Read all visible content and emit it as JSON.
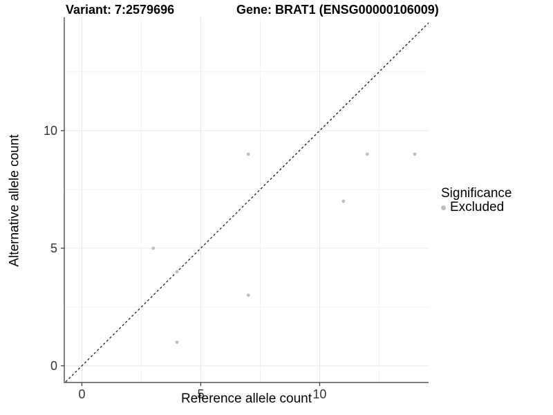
{
  "header": {
    "variant_title": "Variant: 7:2579696",
    "gene_title": "Gene: BRAT1 (ENSG00000106009)"
  },
  "chart_data": {
    "type": "scatter",
    "xlabel": "Reference allele count",
    "ylabel": "Alternative allele count",
    "xlim": [
      -0.74,
      14.58
    ],
    "ylim": [
      -0.71,
      14.82
    ],
    "x_ticks": [
      0,
      5,
      10
    ],
    "y_ticks": [
      0,
      5,
      10
    ],
    "x_minor_ticks": [
      2.5,
      7.5,
      12.5
    ],
    "y_minor_ticks": [
      2.5,
      7.5,
      12.5
    ],
    "grid": true,
    "identity_line": {
      "slope": 1,
      "intercept": 0,
      "linetype": "dashed",
      "color": "#1a1a1a"
    },
    "series": [
      {
        "name": "Excluded",
        "color": "#bebebe",
        "points": [
          [
            3,
            5
          ],
          [
            4,
            1
          ],
          [
            4,
            4
          ],
          [
            7,
            3
          ],
          [
            7,
            9
          ],
          [
            11,
            7
          ],
          [
            12,
            9
          ],
          [
            14,
            9
          ]
        ]
      }
    ],
    "legend": {
      "position": "right",
      "title": "Significance",
      "items": [
        {
          "label": "Excluded",
          "color": "#bebebe"
        }
      ]
    }
  },
  "style_colors": {
    "point": "#bebebe",
    "axis_line": "#333333",
    "tick_text": "#333333",
    "grid_major": "#e6e6e6",
    "grid_minor": "#f2f2f2"
  }
}
